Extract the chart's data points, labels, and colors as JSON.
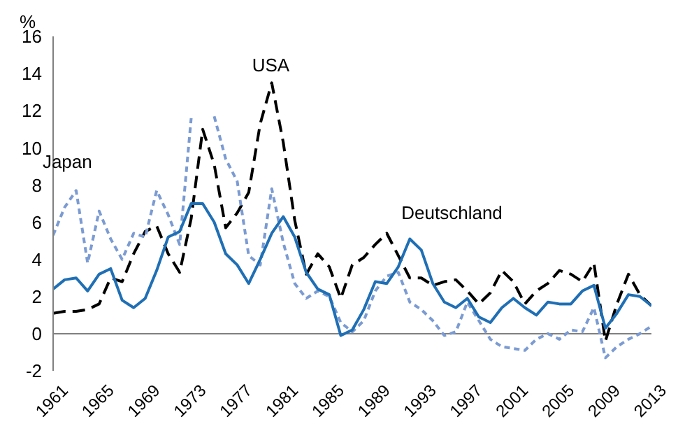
{
  "chart_data": {
    "type": "line",
    "ylabel": "%",
    "x": [
      1961,
      1962,
      1963,
      1964,
      1965,
      1966,
      1967,
      1968,
      1969,
      1970,
      1971,
      1972,
      1973,
      1974,
      1975,
      1976,
      1977,
      1978,
      1979,
      1980,
      1981,
      1982,
      1983,
      1984,
      1985,
      1986,
      1987,
      1988,
      1989,
      1990,
      1991,
      1992,
      1993,
      1994,
      1995,
      1996,
      1997,
      1998,
      1999,
      2000,
      2001,
      2002,
      2003,
      2004,
      2005,
      2006,
      2007,
      2008,
      2009,
      2010,
      2011,
      2012,
      2013
    ],
    "series": [
      {
        "name": "USA",
        "color": "#000000",
        "line_style": "dashed",
        "values": [
          1.1,
          1.2,
          1.2,
          1.3,
          1.6,
          3.0,
          2.8,
          4.3,
          5.5,
          5.8,
          4.3,
          3.3,
          6.2,
          11.0,
          9.1,
          5.7,
          6.5,
          7.6,
          11.3,
          13.5,
          10.3,
          6.1,
          3.2,
          4.3,
          3.6,
          1.9,
          3.7,
          4.1,
          4.8,
          5.4,
          4.2,
          3.0,
          3.0,
          2.6,
          2.8,
          2.9,
          2.3,
          1.6,
          2.2,
          3.4,
          2.8,
          1.6,
          2.3,
          2.7,
          3.4,
          3.2,
          2.8,
          3.8,
          -0.4,
          1.6,
          3.2,
          2.1,
          1.5
        ]
      },
      {
        "name": "Japan",
        "color": "#7b9bd2",
        "line_style": "dotted",
        "values": [
          5.3,
          6.8,
          7.7,
          3.8,
          6.6,
          5.1,
          4.0,
          5.4,
          5.2,
          7.7,
          6.4,
          4.8,
          11.6,
          null,
          11.7,
          9.4,
          8.2,
          4.2,
          3.7,
          7.8,
          4.9,
          2.7,
          1.9,
          2.3,
          2.0,
          0.6,
          0.1,
          0.7,
          2.3,
          3.1,
          3.3,
          1.7,
          1.3,
          0.7,
          -0.1,
          0.1,
          1.7,
          0.7,
          -0.3,
          -0.7,
          -0.8,
          -0.9,
          -0.3,
          0.0,
          -0.3,
          0.2,
          0.1,
          1.4,
          -1.3,
          -0.7,
          -0.3,
          0.0,
          0.4
        ]
      },
      {
        "name": "Deutschland",
        "color": "#1f6fb5",
        "line_style": "solid",
        "values": [
          2.4,
          2.9,
          3.0,
          2.3,
          3.2,
          3.5,
          1.8,
          1.4,
          1.9,
          3.4,
          5.2,
          5.5,
          7.0,
          7.0,
          6.0,
          4.3,
          3.7,
          2.7,
          4.0,
          5.4,
          6.3,
          5.2,
          3.3,
          2.4,
          2.1,
          -0.1,
          0.2,
          1.3,
          2.8,
          2.7,
          3.6,
          5.1,
          4.5,
          2.7,
          1.7,
          1.4,
          1.9,
          0.9,
          0.6,
          1.4,
          1.9,
          1.4,
          1.0,
          1.7,
          1.6,
          1.6,
          2.3,
          2.6,
          0.3,
          1.1,
          2.1,
          2.0,
          1.5
        ]
      }
    ],
    "xlim": [
      1961,
      2013
    ],
    "xticks": [
      1961,
      1965,
      1969,
      1973,
      1977,
      1981,
      1985,
      1989,
      1993,
      1997,
      2001,
      2005,
      2009,
      2013
    ],
    "ylim": [
      -2,
      16
    ],
    "yticks": [
      -2,
      0,
      2,
      4,
      6,
      8,
      10,
      12,
      14,
      16
    ],
    "ref_lines": [
      {
        "axis": "y",
        "value": 0,
        "color": "#808080"
      }
    ],
    "grid": false,
    "legend": false,
    "marker": "none"
  }
}
